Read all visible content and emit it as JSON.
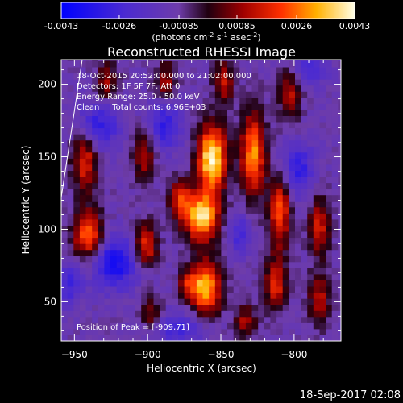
{
  "colorbar": {
    "tick_labels": [
      "-0.0043",
      "-0.0026",
      "-0.00085",
      "0.00085",
      "0.0026",
      "0.0043"
    ],
    "range": [
      -0.0043,
      0.0043
    ],
    "units_base": "(photons cm",
    "units_sup1": "-2",
    "units_mid": " s",
    "units_sup2": "-1",
    "units_mid2": " asec",
    "units_sup3": "-2",
    "units_end": ")"
  },
  "chart_data": {
    "type": "heatmap",
    "title": "Reconstructed RHESSI Image",
    "xlabel": "Heliocentric X (arcsec)",
    "ylabel": "Heliocentric Y (arcsec)",
    "xlim": [
      -959,
      -768
    ],
    "ylim": [
      23,
      217
    ],
    "x_ticks": [
      -950,
      -900,
      -850,
      -800
    ],
    "y_ticks": [
      50,
      100,
      150,
      200
    ],
    "annotations": [
      "18-Oct-2015 20:52:00.000 to 21:02:00.000",
      "Detectors: 1F 5F 7F, Att 0",
      "Energy Range: 25.0 - 50.0 keV",
      "Clean     Total counts: 6.96E+03"
    ],
    "peak_label": "Position of Peak = [-909,71]",
    "peak_position": [
      -909,
      71
    ],
    "total_counts": 6960,
    "energy_range_kev": [
      25.0,
      50.0
    ]
  },
  "footer": {
    "timestamp": "18-Sep-2017 02:08"
  }
}
